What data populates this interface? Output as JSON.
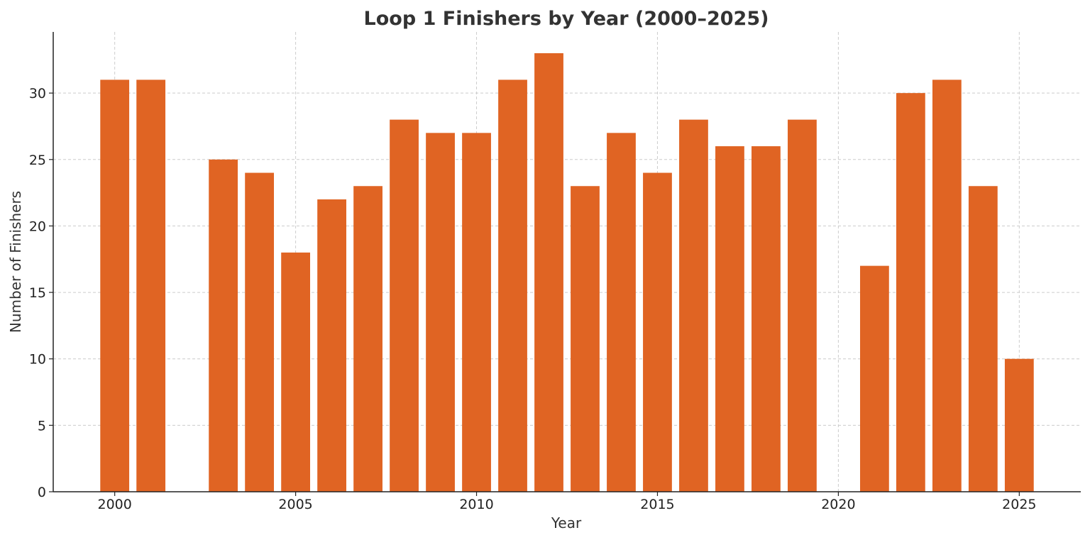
{
  "chart_data": {
    "type": "bar",
    "title": "Loop 1 Finishers by Year (2000–2025)",
    "xlabel": "Year",
    "ylabel": "Number of Finishers",
    "x": [
      2000,
      2001,
      2002,
      2003,
      2004,
      2005,
      2006,
      2007,
      2008,
      2009,
      2010,
      2011,
      2012,
      2013,
      2014,
      2015,
      2016,
      2017,
      2018,
      2019,
      2020,
      2021,
      2022,
      2023,
      2024,
      2025
    ],
    "values": [
      31,
      31,
      0,
      25,
      24,
      18,
      22,
      23,
      28,
      27,
      27,
      31,
      33,
      23,
      27,
      24,
      28,
      26,
      26,
      28,
      0,
      17,
      30,
      31,
      23,
      10
    ],
    "xlim": [
      1998.3,
      2026.7
    ],
    "ylim": [
      0,
      34.6
    ],
    "xticks": [
      2000,
      2005,
      2010,
      2015,
      2020,
      2025
    ],
    "yticks": [
      0,
      5,
      10,
      15,
      20,
      25,
      30
    ],
    "grid": true,
    "bar_color": "#e06423"
  }
}
